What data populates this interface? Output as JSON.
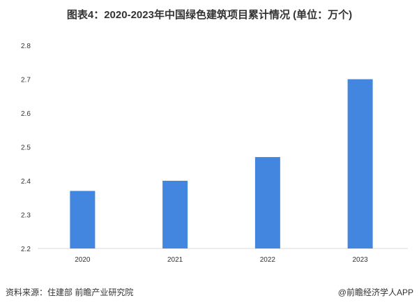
{
  "chart_data": {
    "type": "bar",
    "title": "图表4：2020-2023年中国绿色建筑项目累计情况 (单位：万个)",
    "categories": [
      "2020",
      "2021",
      "2022",
      "2023"
    ],
    "values": [
      2.37,
      2.4,
      2.47,
      2.7
    ],
    "ylim": [
      2.2,
      2.8
    ],
    "yticks": [
      "2.2",
      "2.3",
      "2.4",
      "2.5",
      "2.6",
      "2.7",
      "2.8"
    ],
    "grid": false,
    "bar_color": "#4286E0"
  },
  "footer": {
    "source": "资料来源：住建部 前瞻产业研究院",
    "brand": "@前瞻经济学人APP"
  }
}
